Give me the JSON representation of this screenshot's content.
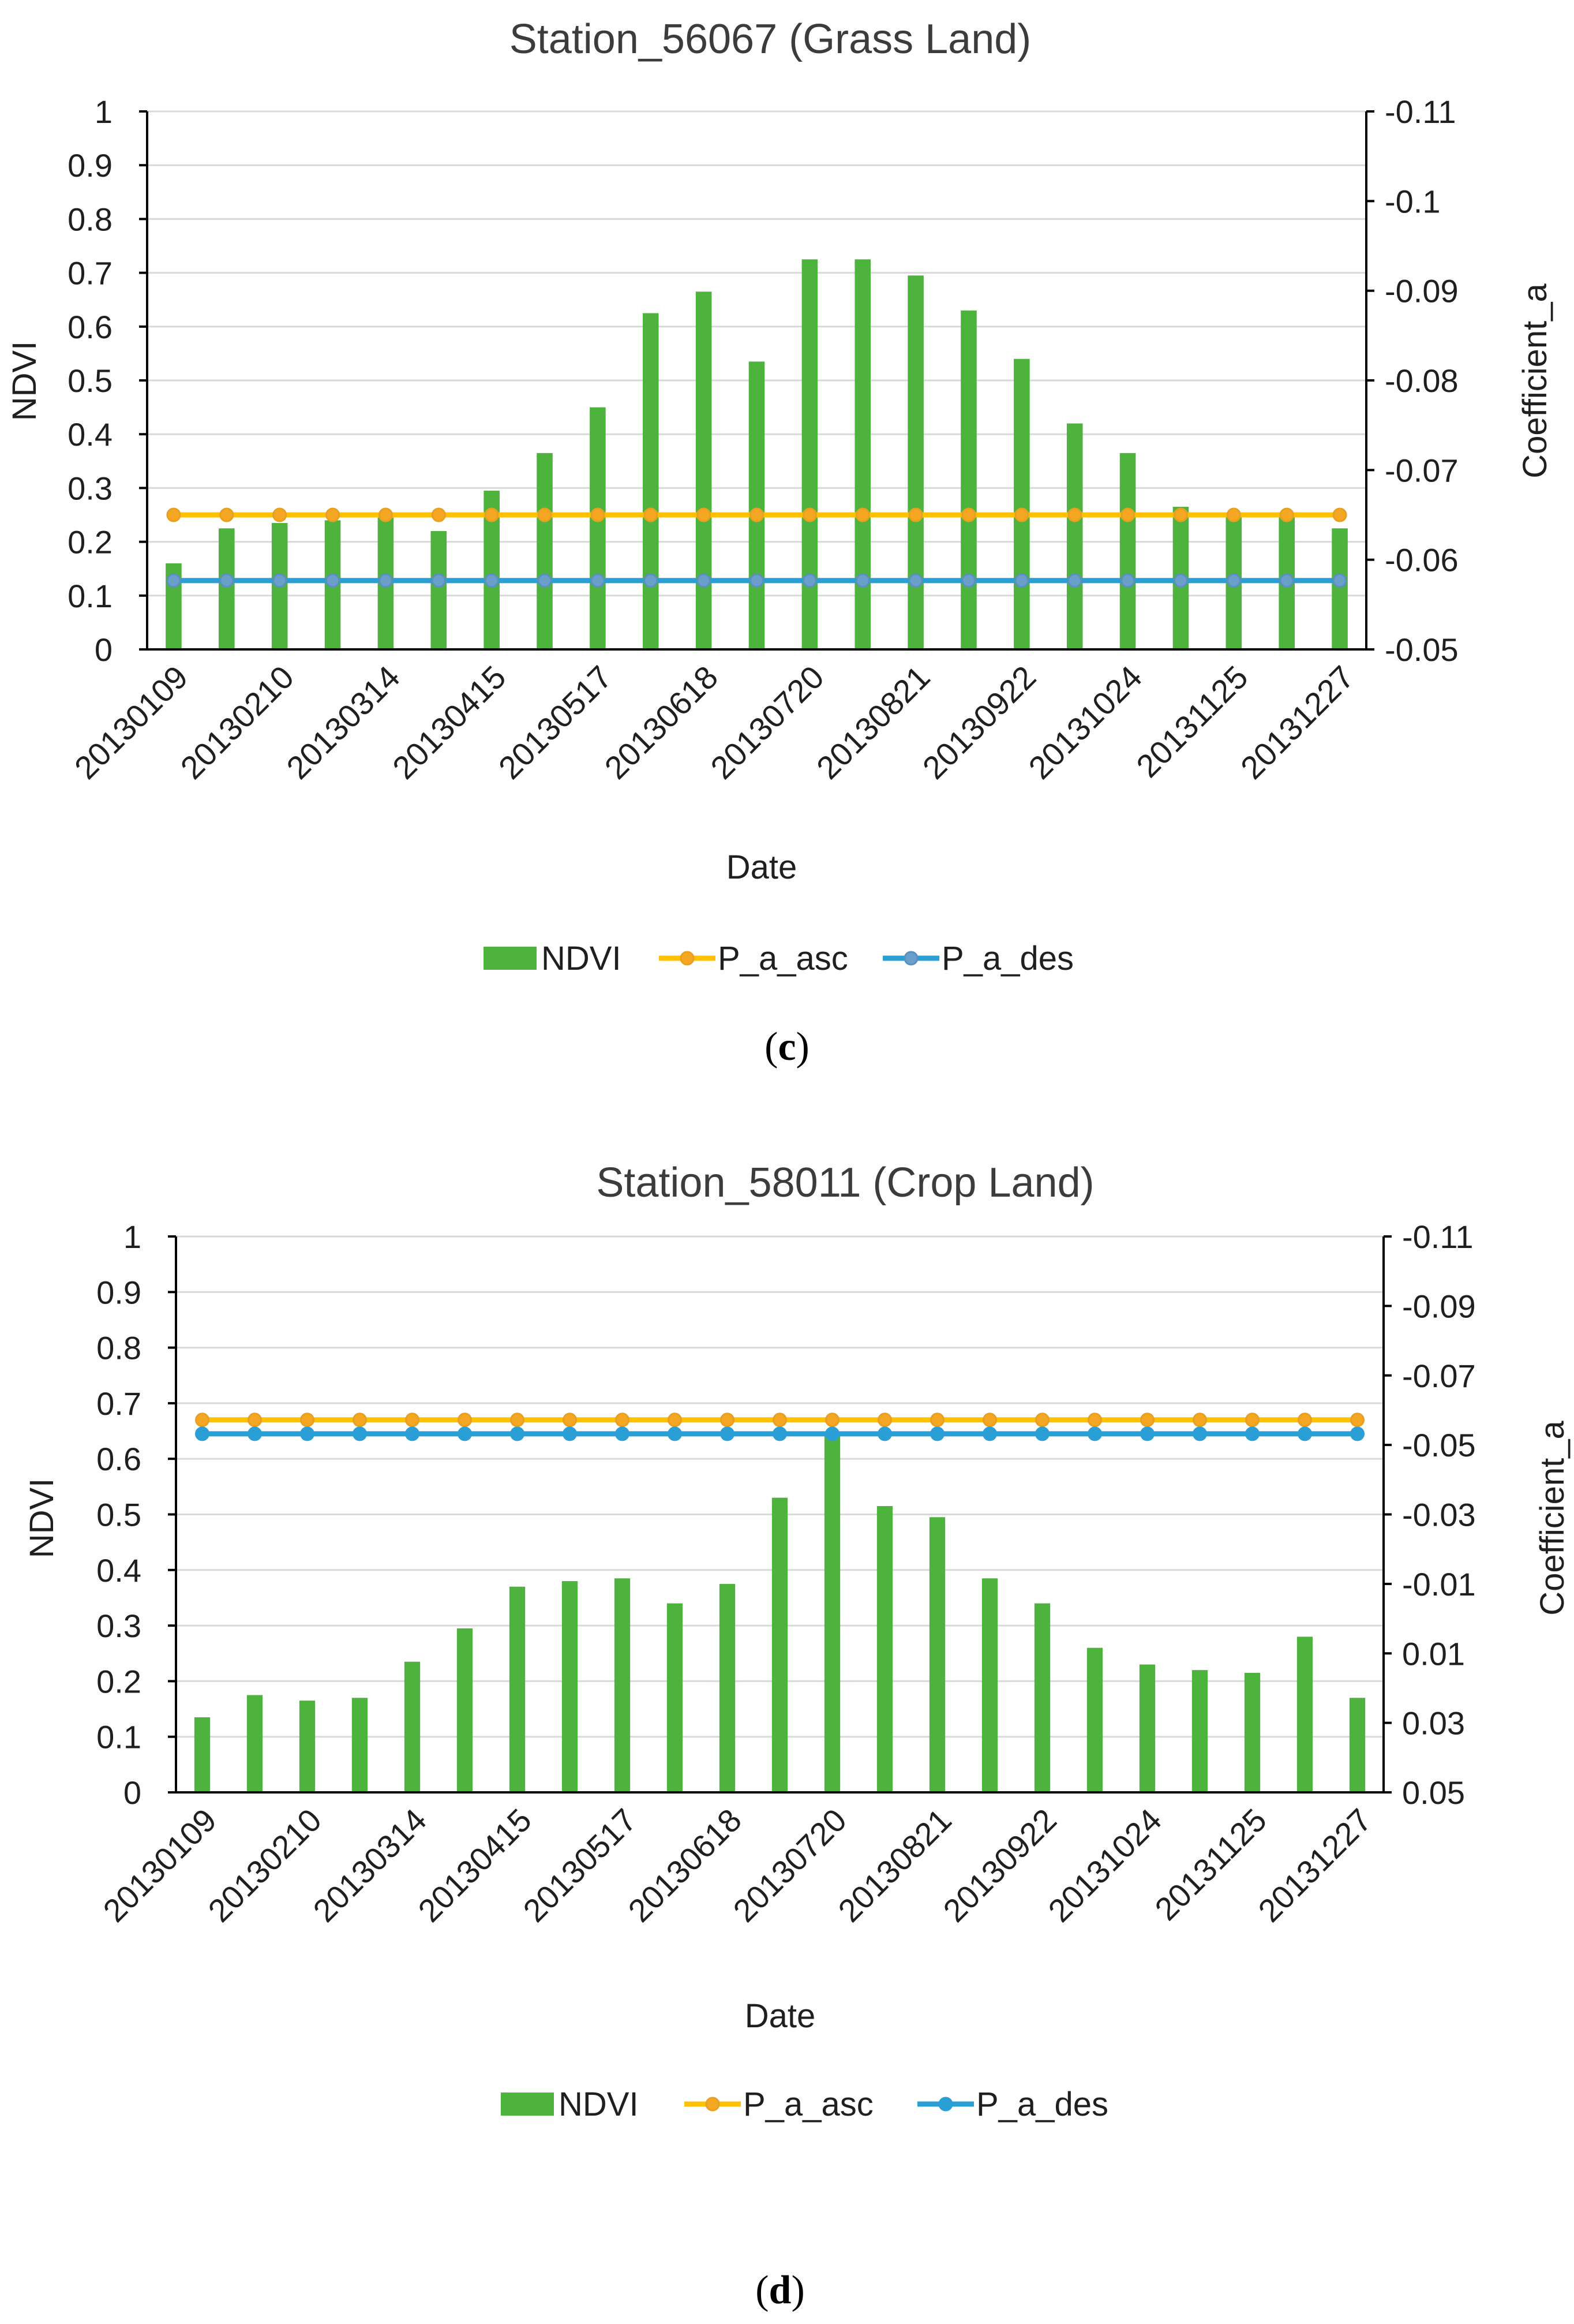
{
  "colors": {
    "ndvi": "#4db33d",
    "asc_line": "#ffc000",
    "asc_marker_fill": "#f5a623",
    "asc_marker_stroke": "#e8a020",
    "des_line": "#2a9fd6",
    "des_marker_fill": "#6a9fc9",
    "des_marker_stroke": "#5b8fc0",
    "grid": "#d9d9d9",
    "axis": "#000000"
  },
  "chart_data": [
    {
      "id": "c",
      "type": "bar",
      "title": "Station_56067 (Grass Land)",
      "panel_label": "c",
      "xlabel": "Date",
      "ylabel": "NDVI",
      "y2label": "Coefficient_a",
      "ylim": [
        0,
        1
      ],
      "y2lim": [
        -0.05,
        -0.11
      ],
      "yticks": [
        "0",
        "0.1",
        "0.2",
        "0.3",
        "0.4",
        "0.5",
        "0.6",
        "0.7",
        "0.8",
        "0.9",
        "1"
      ],
      "y2ticks": [
        "-0.05",
        "-0.06",
        "-0.07",
        "-0.08",
        "-0.09",
        "-0.1",
        "-0.11"
      ],
      "xtick_labels": [
        "20130109",
        "20130210",
        "20130314",
        "20130415",
        "20130517",
        "20130618",
        "20130720",
        "20130821",
        "20130922",
        "20131024",
        "20131125",
        "20131227"
      ],
      "categories_count": 23,
      "series": [
        {
          "name": "NDVI",
          "kind": "bar",
          "axis": "left",
          "values": [
            0.16,
            0.225,
            0.235,
            0.24,
            0.245,
            0.22,
            0.295,
            0.365,
            0.45,
            0.625,
            0.665,
            0.535,
            0.725,
            0.725,
            0.695,
            0.63,
            0.54,
            0.42,
            0.365,
            0.265,
            0.25,
            0.25,
            0.225
          ]
        },
        {
          "name": "P_a_asc",
          "kind": "line",
          "axis": "left",
          "values": [
            0.25,
            0.25,
            0.25,
            0.25,
            0.25,
            0.25,
            0.25,
            0.25,
            0.25,
            0.25,
            0.25,
            0.25,
            0.25,
            0.25,
            0.25,
            0.25,
            0.25,
            0.25,
            0.25,
            0.25,
            0.25,
            0.25,
            0.25
          ]
        },
        {
          "name": "P_a_des",
          "kind": "line",
          "axis": "left",
          "values": [
            0.128,
            0.128,
            0.128,
            0.128,
            0.128,
            0.128,
            0.128,
            0.128,
            0.128,
            0.128,
            0.128,
            0.128,
            0.128,
            0.128,
            0.128,
            0.128,
            0.128,
            0.128,
            0.128,
            0.128,
            0.128,
            0.128,
            0.128
          ]
        }
      ]
    },
    {
      "id": "d",
      "type": "bar",
      "title": "Station_58011 (Crop Land)",
      "panel_label": "d",
      "xlabel": "Date",
      "ylabel": "NDVI",
      "y2label": "Coefficient_a",
      "ylim": [
        0,
        1
      ],
      "y2lim": [
        0.05,
        -0.11
      ],
      "yticks": [
        "0",
        "0.1",
        "0.2",
        "0.3",
        "0.4",
        "0.5",
        "0.6",
        "0.7",
        "0.8",
        "0.9",
        "1"
      ],
      "y2ticks": [
        "0.05",
        "0.03",
        "0.01",
        "-0.01",
        "-0.03",
        "-0.05",
        "-0.07",
        "-0.09",
        "-0.11"
      ],
      "xtick_labels": [
        "20130109",
        "20130210",
        "20130314",
        "20130415",
        "20130517",
        "20130618",
        "20130720",
        "20130821",
        "20130922",
        "20131024",
        "20131125",
        "20131227"
      ],
      "categories_count": 23,
      "series": [
        {
          "name": "NDVI",
          "kind": "bar",
          "axis": "left",
          "values": [
            0.135,
            0.175,
            0.165,
            0.17,
            0.235,
            0.295,
            0.37,
            0.38,
            0.385,
            0.34,
            0.375,
            0.53,
            0.645,
            0.515,
            0.495,
            0.385,
            0.34,
            0.26,
            0.23,
            0.22,
            0.215,
            0.28,
            0.17
          ]
        },
        {
          "name": "P_a_asc",
          "kind": "line",
          "axis": "left",
          "values": [
            0.67,
            0.67,
            0.67,
            0.67,
            0.67,
            0.67,
            0.67,
            0.67,
            0.67,
            0.67,
            0.67,
            0.67,
            0.67,
            0.67,
            0.67,
            0.67,
            0.67,
            0.67,
            0.67,
            0.67,
            0.67,
            0.67,
            0.67
          ]
        },
        {
          "name": "P_a_des",
          "kind": "line",
          "axis": "left",
          "values": [
            0.645,
            0.645,
            0.645,
            0.645,
            0.645,
            0.645,
            0.645,
            0.645,
            0.645,
            0.645,
            0.645,
            0.645,
            0.645,
            0.645,
            0.645,
            0.645,
            0.645,
            0.645,
            0.645,
            0.645,
            0.645,
            0.645,
            0.645
          ]
        }
      ]
    }
  ],
  "legend": {
    "ndvi": "NDVI",
    "asc": "P_a_asc",
    "des": "P_a_des"
  },
  "panel_labels": {
    "c_open": "(",
    "c_letter": "c",
    "c_close": ")",
    "d_open": "(",
    "d_letter": "d",
    "d_close": ")"
  }
}
